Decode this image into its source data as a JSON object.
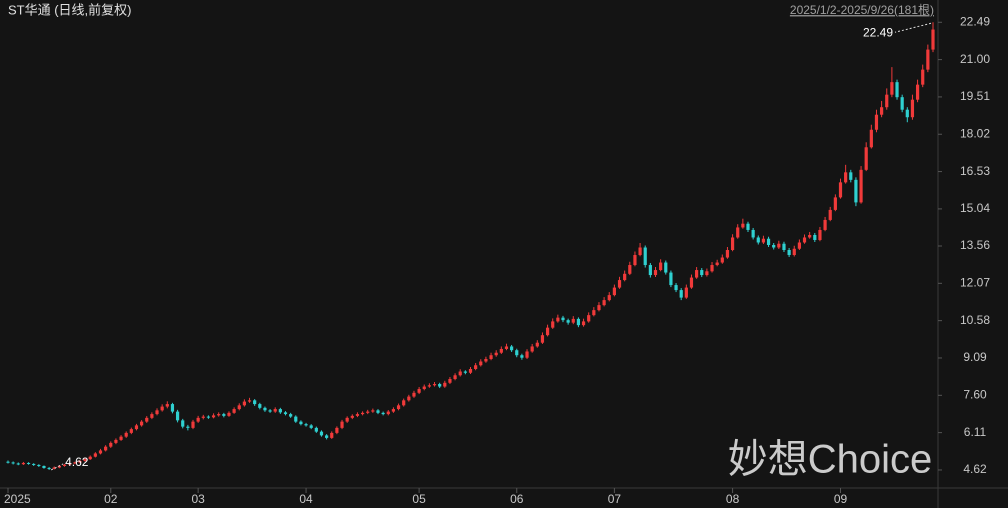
{
  "chart_data": {
    "type": "candlestick",
    "title": "ST华通 (日线,前复权)",
    "subtitle": "2025/1/2-2025/9/26(181根)",
    "watermark": "妙想Choice",
    "up_color": "#f03a3a",
    "down_color": "#2fd0d0",
    "ylim": [
      4.0,
      22.9
    ],
    "yticks": [
      22.49,
      {
        "value": 21.0,
        "label": "21.00"
      },
      19.51,
      18.02,
      16.53,
      15.04,
      13.56,
      12.07,
      10.58,
      9.09,
      {
        "value": 7.6,
        "label": "7.60"
      },
      6.11,
      4.62
    ],
    "xlim": [
      0,
      180
    ],
    "xticks": [
      {
        "value": 0,
        "label": "2025"
      },
      {
        "value": 20,
        "label": "02"
      },
      {
        "value": 37,
        "label": "03"
      },
      {
        "value": 58,
        "label": "04"
      },
      {
        "value": 80,
        "label": "05"
      },
      {
        "value": 99,
        "label": "06"
      },
      {
        "value": 118,
        "label": "07"
      },
      {
        "value": 141,
        "label": "08"
      },
      {
        "value": 162,
        "label": "09"
      }
    ],
    "ohlc": [
      [
        4.95,
        5.0,
        4.88,
        4.92
      ],
      [
        4.92,
        4.96,
        4.84,
        4.88
      ],
      [
        4.88,
        4.92,
        4.81,
        4.85
      ],
      [
        4.85,
        4.94,
        4.82,
        4.9
      ],
      [
        4.9,
        4.93,
        4.83,
        4.86
      ],
      [
        4.86,
        4.89,
        4.78,
        4.82
      ],
      [
        4.82,
        4.85,
        4.74,
        4.78
      ],
      [
        4.78,
        4.8,
        4.67,
        4.7
      ],
      [
        4.7,
        4.74,
        4.62,
        4.66
      ],
      [
        4.66,
        4.76,
        4.64,
        4.72
      ],
      [
        4.72,
        4.81,
        4.69,
        4.78
      ],
      [
        4.78,
        4.86,
        4.75,
        4.83
      ],
      [
        4.83,
        4.91,
        4.8,
        4.88
      ],
      [
        4.88,
        4.95,
        4.85,
        4.92
      ],
      [
        4.92,
        5.02,
        4.89,
        4.98
      ],
      [
        4.98,
        5.1,
        4.95,
        5.05
      ],
      [
        5.05,
        5.2,
        5.02,
        5.15
      ],
      [
        5.15,
        5.33,
        5.12,
        5.28
      ],
      [
        5.28,
        5.46,
        5.24,
        5.4
      ],
      [
        5.4,
        5.61,
        5.36,
        5.55
      ],
      [
        5.55,
        5.76,
        5.5,
        5.7
      ],
      [
        5.7,
        5.88,
        5.65,
        5.82
      ],
      [
        5.82,
        6.01,
        5.78,
        5.95
      ],
      [
        5.95,
        6.16,
        5.9,
        6.1
      ],
      [
        6.1,
        6.31,
        6.05,
        6.25
      ],
      [
        6.25,
        6.46,
        6.2,
        6.4
      ],
      [
        6.4,
        6.61,
        6.35,
        6.55
      ],
      [
        6.55,
        6.77,
        6.5,
        6.7
      ],
      [
        6.7,
        6.92,
        6.65,
        6.85
      ],
      [
        6.85,
        7.08,
        6.8,
        7.0
      ],
      [
        7.0,
        7.24,
        6.95,
        7.15
      ],
      [
        7.15,
        7.36,
        7.08,
        7.25
      ],
      [
        7.25,
        7.3,
        6.88,
        6.95
      ],
      [
        6.95,
        7.02,
        6.52,
        6.6
      ],
      [
        6.6,
        6.66,
        6.28,
        6.35
      ],
      [
        6.35,
        6.42,
        6.2,
        6.3
      ],
      [
        6.3,
        6.62,
        6.25,
        6.55
      ],
      [
        6.55,
        6.78,
        6.5,
        6.7
      ],
      [
        6.7,
        6.82,
        6.64,
        6.75
      ],
      [
        6.75,
        6.8,
        6.66,
        6.72
      ],
      [
        6.72,
        6.88,
        6.68,
        6.8
      ],
      [
        6.8,
        6.92,
        6.75,
        6.85
      ],
      [
        6.85,
        6.9,
        6.72,
        6.78
      ],
      [
        6.78,
        6.96,
        6.74,
        6.9
      ],
      [
        6.9,
        7.12,
        6.86,
        7.05
      ],
      [
        7.05,
        7.28,
        7.0,
        7.2
      ],
      [
        7.2,
        7.44,
        7.15,
        7.35
      ],
      [
        7.35,
        7.5,
        7.3,
        7.4
      ],
      [
        7.4,
        7.45,
        7.18,
        7.25
      ],
      [
        7.25,
        7.3,
        7.04,
        7.1
      ],
      [
        7.1,
        7.15,
        6.94,
        7.0
      ],
      [
        7.0,
        7.05,
        6.9,
        6.95
      ],
      [
        6.95,
        7.12,
        6.9,
        7.05
      ],
      [
        7.05,
        7.1,
        6.86,
        6.92
      ],
      [
        6.92,
        6.97,
        6.8,
        6.85
      ],
      [
        6.85,
        6.9,
        6.7,
        6.75
      ],
      [
        6.75,
        6.8,
        6.5,
        6.55
      ],
      [
        6.55,
        6.6,
        6.4,
        6.45
      ],
      [
        6.45,
        6.5,
        6.35,
        6.4
      ],
      [
        6.4,
        6.45,
        6.25,
        6.3
      ],
      [
        6.3,
        6.35,
        6.1,
        6.15
      ],
      [
        6.15,
        6.2,
        5.95,
        6.0
      ],
      [
        6.0,
        6.05,
        5.84,
        5.9
      ],
      [
        5.9,
        6.16,
        5.86,
        6.1
      ],
      [
        6.1,
        6.36,
        6.05,
        6.3
      ],
      [
        6.3,
        6.62,
        6.25,
        6.55
      ],
      [
        6.55,
        6.76,
        6.5,
        6.7
      ],
      [
        6.7,
        6.84,
        6.65,
        6.78
      ],
      [
        6.78,
        6.92,
        6.73,
        6.85
      ],
      [
        6.85,
        6.96,
        6.8,
        6.9
      ],
      [
        6.9,
        7.02,
        6.85,
        6.95
      ],
      [
        6.95,
        7.07,
        6.9,
        7.0
      ],
      [
        7.0,
        7.05,
        6.85,
        6.9
      ],
      [
        6.9,
        6.95,
        6.8,
        6.85
      ],
      [
        6.85,
        7.01,
        6.8,
        6.95
      ],
      [
        6.95,
        7.12,
        6.9,
        7.05
      ],
      [
        7.05,
        7.27,
        7.0,
        7.2
      ],
      [
        7.2,
        7.47,
        7.15,
        7.4
      ],
      [
        7.4,
        7.62,
        7.35,
        7.55
      ],
      [
        7.55,
        7.78,
        7.5,
        7.7
      ],
      [
        7.7,
        7.93,
        7.65,
        7.85
      ],
      [
        7.85,
        8.03,
        7.8,
        7.95
      ],
      [
        7.95,
        8.08,
        7.9,
        8.0
      ],
      [
        8.0,
        8.13,
        7.95,
        8.05
      ],
      [
        8.05,
        8.1,
        7.89,
        7.95
      ],
      [
        7.95,
        8.18,
        7.9,
        8.1
      ],
      [
        8.1,
        8.33,
        8.05,
        8.25
      ],
      [
        8.25,
        8.48,
        8.2,
        8.4
      ],
      [
        8.4,
        8.64,
        8.35,
        8.55
      ],
      [
        8.55,
        8.6,
        8.44,
        8.5
      ],
      [
        8.5,
        8.73,
        8.45,
        8.65
      ],
      [
        8.65,
        8.89,
        8.6,
        8.8
      ],
      [
        8.8,
        9.04,
        8.75,
        8.95
      ],
      [
        8.95,
        9.14,
        8.9,
        9.05
      ],
      [
        9.05,
        9.3,
        9.0,
        9.2
      ],
      [
        9.2,
        9.4,
        9.14,
        9.3
      ],
      [
        9.3,
        9.55,
        9.25,
        9.45
      ],
      [
        9.45,
        9.66,
        9.4,
        9.55
      ],
      [
        9.55,
        9.61,
        9.33,
        9.4
      ],
      [
        9.4,
        9.46,
        9.12,
        9.2
      ],
      [
        9.2,
        9.26,
        9.02,
        9.1
      ],
      [
        9.1,
        9.44,
        9.05,
        9.35
      ],
      [
        9.35,
        9.65,
        9.3,
        9.55
      ],
      [
        9.55,
        9.8,
        9.5,
        9.7
      ],
      [
        9.7,
        10.11,
        9.65,
        10.0
      ],
      [
        10.0,
        10.42,
        9.95,
        10.3
      ],
      [
        10.3,
        10.67,
        10.25,
        10.55
      ],
      [
        10.55,
        10.82,
        10.5,
        10.7
      ],
      [
        10.7,
        10.77,
        10.52,
        10.6
      ],
      [
        10.6,
        10.66,
        10.42,
        10.5
      ],
      [
        10.5,
        10.76,
        10.44,
        10.65
      ],
      [
        10.65,
        10.71,
        10.32,
        10.4
      ],
      [
        10.4,
        10.66,
        10.34,
        10.55
      ],
      [
        10.55,
        10.91,
        10.5,
        10.8
      ],
      [
        10.8,
        11.12,
        10.75,
        11.0
      ],
      [
        11.0,
        11.32,
        10.95,
        11.2
      ],
      [
        11.2,
        11.52,
        11.15,
        11.4
      ],
      [
        11.4,
        11.72,
        11.35,
        11.6
      ],
      [
        11.6,
        12.02,
        11.55,
        11.9
      ],
      [
        11.9,
        12.33,
        11.85,
        12.2
      ],
      [
        12.2,
        12.58,
        12.15,
        12.45
      ],
      [
        12.45,
        12.93,
        12.4,
        12.8
      ],
      [
        12.8,
        13.34,
        12.75,
        13.2
      ],
      [
        13.2,
        13.68,
        13.15,
        13.5
      ],
      [
        13.5,
        13.58,
        12.7,
        12.8
      ],
      [
        12.8,
        12.88,
        12.3,
        12.4
      ],
      [
        12.4,
        12.72,
        12.32,
        12.6
      ],
      [
        12.6,
        13.03,
        12.55,
        12.9
      ],
      [
        12.9,
        12.98,
        12.42,
        12.5
      ],
      [
        12.5,
        12.58,
        11.92,
        12.0
      ],
      [
        12.0,
        12.08,
        11.72,
        11.8
      ],
      [
        11.8,
        11.88,
        11.4,
        11.5
      ],
      [
        11.5,
        12.02,
        11.45,
        11.9
      ],
      [
        11.9,
        12.42,
        11.85,
        12.3
      ],
      [
        12.3,
        12.72,
        12.25,
        12.6
      ],
      [
        12.6,
        12.68,
        12.32,
        12.4
      ],
      [
        12.4,
        12.66,
        12.34,
        12.55
      ],
      [
        12.55,
        12.92,
        12.5,
        12.8
      ],
      [
        12.8,
        13.01,
        12.75,
        12.9
      ],
      [
        12.9,
        13.22,
        12.85,
        13.1
      ],
      [
        13.1,
        13.52,
        13.05,
        13.4
      ],
      [
        13.4,
        14.03,
        13.35,
        13.9
      ],
      [
        13.9,
        14.43,
        13.85,
        14.3
      ],
      [
        14.3,
        14.65,
        14.25,
        14.45
      ],
      [
        14.45,
        14.53,
        14.12,
        14.2
      ],
      [
        14.2,
        14.28,
        13.82,
        13.9
      ],
      [
        13.9,
        13.98,
        13.62,
        13.7
      ],
      [
        13.7,
        13.97,
        13.64,
        13.85
      ],
      [
        13.85,
        13.93,
        13.52,
        13.6
      ],
      [
        13.6,
        13.68,
        13.42,
        13.5
      ],
      [
        13.5,
        13.77,
        13.44,
        13.65
      ],
      [
        13.65,
        13.73,
        13.32,
        13.4
      ],
      [
        13.4,
        13.48,
        13.12,
        13.2
      ],
      [
        13.2,
        13.57,
        13.14,
        13.45
      ],
      [
        13.45,
        13.82,
        13.4,
        13.7
      ],
      [
        13.7,
        14.02,
        13.65,
        13.9
      ],
      [
        13.9,
        14.12,
        13.85,
        14.0
      ],
      [
        14.0,
        14.08,
        13.72,
        13.8
      ],
      [
        13.8,
        14.32,
        13.75,
        14.2
      ],
      [
        14.2,
        14.72,
        14.15,
        14.6
      ],
      [
        14.6,
        15.12,
        14.55,
        15.0
      ],
      [
        15.0,
        15.62,
        14.95,
        15.5
      ],
      [
        15.5,
        16.25,
        15.45,
        16.1
      ],
      [
        16.1,
        16.8,
        16.05,
        16.5
      ],
      [
        16.5,
        16.6,
        16.1,
        16.2
      ],
      [
        16.2,
        16.3,
        15.15,
        15.3
      ],
      [
        15.3,
        16.75,
        15.25,
        16.6
      ],
      [
        16.6,
        17.7,
        16.55,
        17.5
      ],
      [
        17.5,
        18.4,
        17.45,
        18.2
      ],
      [
        18.2,
        19.0,
        18.1,
        18.8
      ],
      [
        18.8,
        19.35,
        18.7,
        19.1
      ],
      [
        19.1,
        19.85,
        19.0,
        19.6
      ],
      [
        19.6,
        20.7,
        19.5,
        20.1
      ],
      [
        20.1,
        20.2,
        19.4,
        19.5
      ],
      [
        19.5,
        19.6,
        18.9,
        19.0
      ],
      [
        19.0,
        19.1,
        18.5,
        18.7
      ],
      [
        18.7,
        19.6,
        18.6,
        19.4
      ],
      [
        19.4,
        20.2,
        19.3,
        20.0
      ],
      [
        20.0,
        20.8,
        19.9,
        20.6
      ],
      [
        20.6,
        21.6,
        20.5,
        21.4
      ],
      [
        21.4,
        22.49,
        21.3,
        22.2
      ]
    ]
  }
}
